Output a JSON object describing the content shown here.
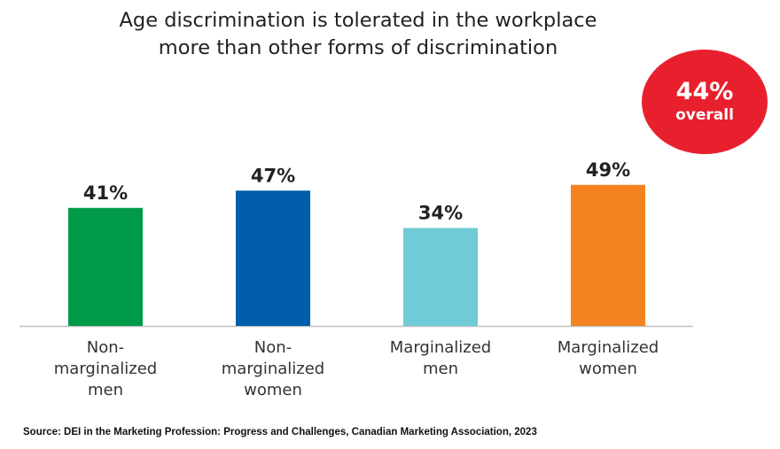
{
  "chart_data": {
    "type": "bar",
    "title": "Age discrimination is tolerated in the workplace\nmore than other forms of discrimination",
    "categories": [
      "Non-\nmarginalized\nmen",
      "Non-\nmarginalized\nwomen",
      "Marginalized\nmen",
      "Marginalized\nwomen"
    ],
    "values": [
      41,
      47,
      34,
      49
    ],
    "value_labels": [
      "41%",
      "47%",
      "34%",
      "49%"
    ],
    "colors": [
      "#009a49",
      "#005eaa",
      "#6fcbd6",
      "#f58220"
    ],
    "xlabel": "",
    "ylabel": "",
    "ylim": [
      0,
      60
    ],
    "grid": false,
    "legend": "none",
    "annotation": {
      "value": "44%",
      "label": "overall",
      "color": "#e8202e"
    }
  },
  "source": "Source: DEI in the Marketing Profession: Progress and Challenges, Canadian Marketing Association, 2023"
}
